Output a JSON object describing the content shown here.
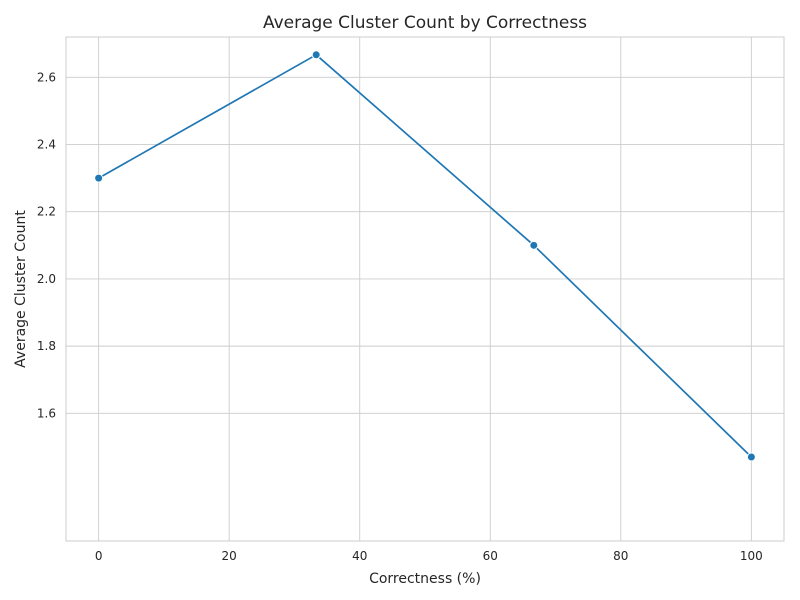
{
  "chart_data": {
    "type": "line",
    "title": "Average Cluster Count by Correctness",
    "xlabel": "Correctness (%)",
    "ylabel": "Average Cluster Count",
    "xlim": [
      -5,
      105
    ],
    "ylim": [
      1.22,
      2.72
    ],
    "x_ticks": [
      0,
      20,
      40,
      60,
      80,
      100
    ],
    "y_ticks": [
      1.6,
      1.8,
      2.0,
      2.2,
      2.4,
      2.6
    ],
    "x_tick_labels": [
      "0",
      "20",
      "40",
      "60",
      "80",
      "100"
    ],
    "y_tick_labels": [
      "1.6",
      "1.8",
      "2.0",
      "2.2",
      "2.4",
      "2.6"
    ],
    "grid": true,
    "series": [
      {
        "color": "#1f77b4",
        "marker": "circle",
        "x": [
          0,
          33.33,
          66.67,
          100
        ],
        "y": [
          2.3,
          2.667,
          2.1,
          1.47
        ]
      }
    ]
  }
}
